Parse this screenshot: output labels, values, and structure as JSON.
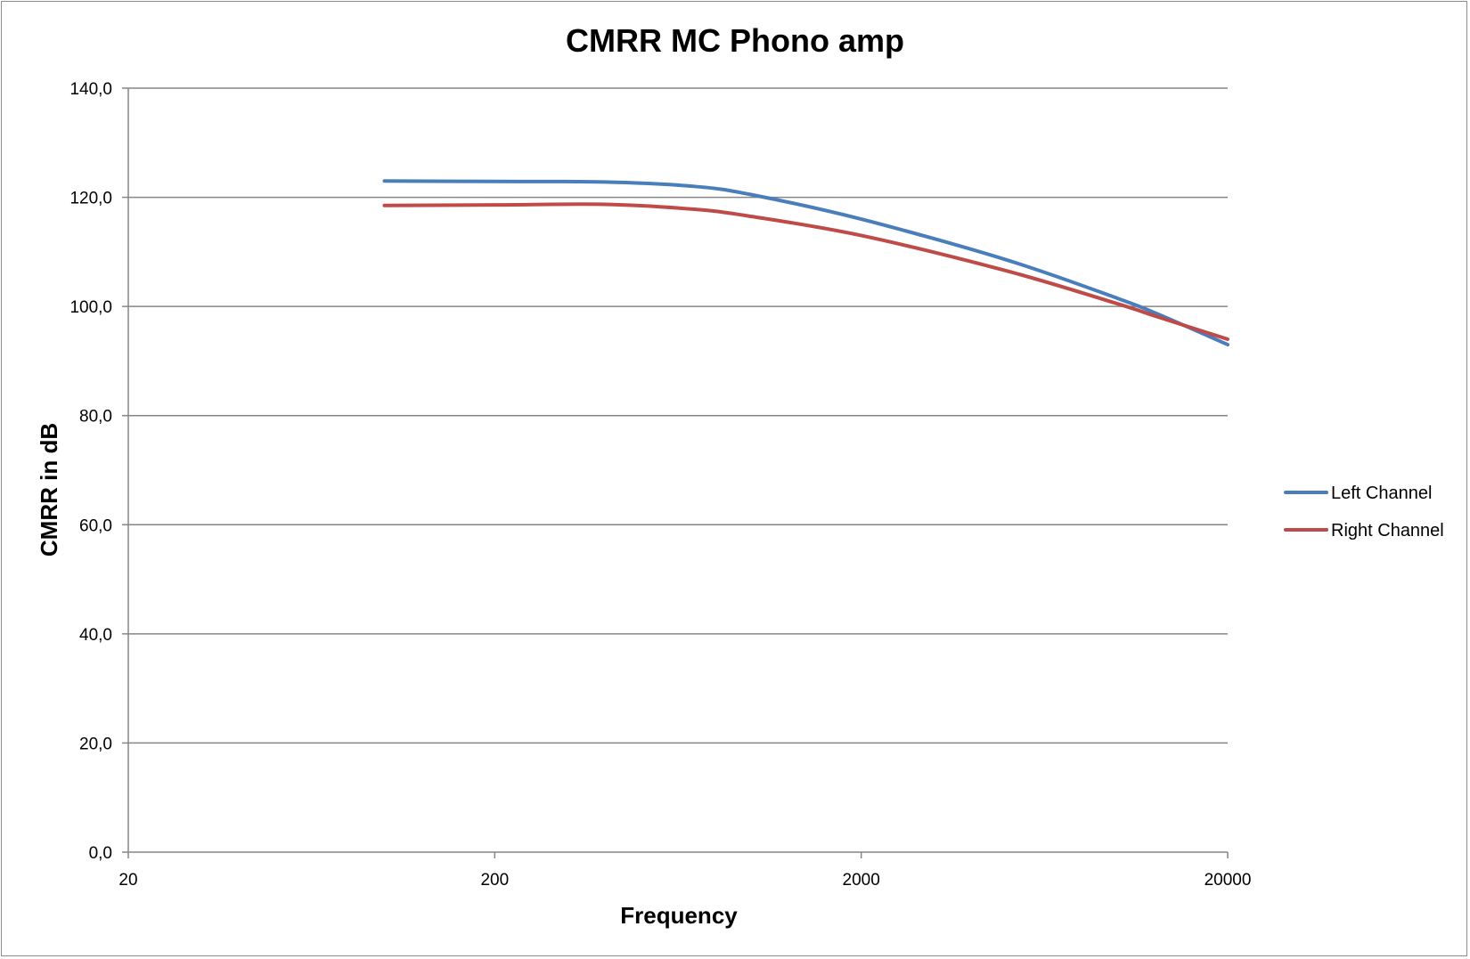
{
  "chart_data": {
    "type": "line",
    "title": "CMRR MC Phono amp",
    "xlabel": "Frequency",
    "ylabel": "CMRR in dB",
    "x_scale": "log",
    "xlim": [
      20,
      20000
    ],
    "ylim": [
      0,
      140
    ],
    "x_ticks": [
      "20",
      "200",
      "2000",
      "20000"
    ],
    "x_tick_values": [
      20,
      200,
      2000,
      20000
    ],
    "y_ticks": [
      "0,0",
      "20,0",
      "40,0",
      "60,0",
      "80,0",
      "100,0",
      "120,0",
      "140,0"
    ],
    "y_tick_values": [
      0,
      20,
      40,
      60,
      80,
      100,
      120,
      140
    ],
    "grid": "horizontal",
    "legend_position": "right",
    "series": [
      {
        "name": "Left Channel",
        "color": "#4a7ebb",
        "x": [
          100,
          200,
          400,
          700,
          1000,
          2000,
          5000,
          10000,
          13000,
          20000
        ],
        "y": [
          123.0,
          122.9,
          122.8,
          122.0,
          120.5,
          116.0,
          108.5,
          101.5,
          98.5,
          93.0
        ]
      },
      {
        "name": "Right Channel",
        "color": "#be4b48",
        "x": [
          100,
          200,
          400,
          700,
          1000,
          2000,
          5000,
          10000,
          13000,
          20000
        ],
        "y": [
          118.5,
          118.6,
          118.7,
          117.8,
          116.5,
          113.0,
          106.5,
          100.5,
          98.0,
          94.0
        ]
      }
    ]
  }
}
